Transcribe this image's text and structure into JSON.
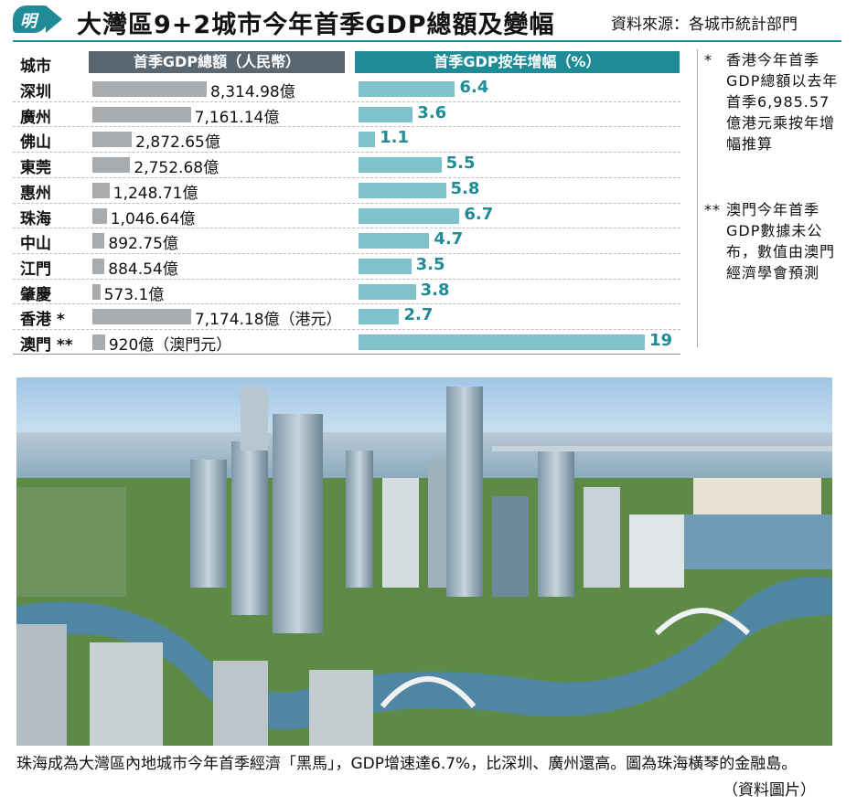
{
  "header": {
    "logo_text": "明",
    "title": "大灣區9+2城市今年首季GDP總額及變幅",
    "source": "資料來源：各城市統計部門"
  },
  "chart_data": {
    "type": "bar",
    "title": "大灣區9+2城市今年首季GDP總額及變幅",
    "column_header_city": "城市",
    "categories": [
      "深圳",
      "廣州",
      "佛山",
      "東莞",
      "惠州",
      "珠海",
      "中山",
      "江門",
      "肇慶",
      "香港 *",
      "澳門 **"
    ],
    "series": [
      {
        "name": "首季GDP總額（人民幣）",
        "values": [
          8314.98,
          7161.14,
          2872.65,
          2752.68,
          1248.71,
          1046.64,
          892.75,
          884.54,
          573.1,
          7174.18,
          920
        ],
        "labels": [
          "8,314.98億",
          "7,161.14億",
          "2,872.65億",
          "2,752.68億",
          "1,248.71億",
          "1,046.64億",
          "892.75億",
          "884.54億",
          "573.1億",
          "7,174.18億（港元）",
          "920億（澳門元）"
        ]
      },
      {
        "name": "首季GDP按年增幅（%）",
        "values": [
          6.4,
          3.6,
          1.1,
          5.5,
          5.8,
          6.7,
          4.7,
          3.5,
          3.8,
          2.7,
          19
        ],
        "labels": [
          "6.4",
          "3.6",
          "1.1",
          "5.5",
          "5.8",
          "6.7",
          "4.7",
          "3.5",
          "3.8",
          "2.7",
          "19"
        ]
      }
    ],
    "colors": {
      "gdp_bar": "#a6acb0",
      "growth_bar": "#7fc2cb",
      "accent": "#1f8b96",
      "header_gray": "#5b6770"
    },
    "notes": [
      {
        "mark": "*",
        "text": "香港今年首季GDP總額以去年首季6,985.57億港元乘按年增幅推算"
      },
      {
        "mark": "**",
        "text": "澳門今年首季GDP數據未公布，數值由澳門經濟學會預測"
      }
    ]
  },
  "photo": {
    "caption": "珠海成為大灣區內地城市今年首季經濟「黑馬」，GDP增速達6.7%，比深圳、廣州還高。圖為珠海橫琴的金融島。",
    "credit": "（資料圖片）"
  }
}
